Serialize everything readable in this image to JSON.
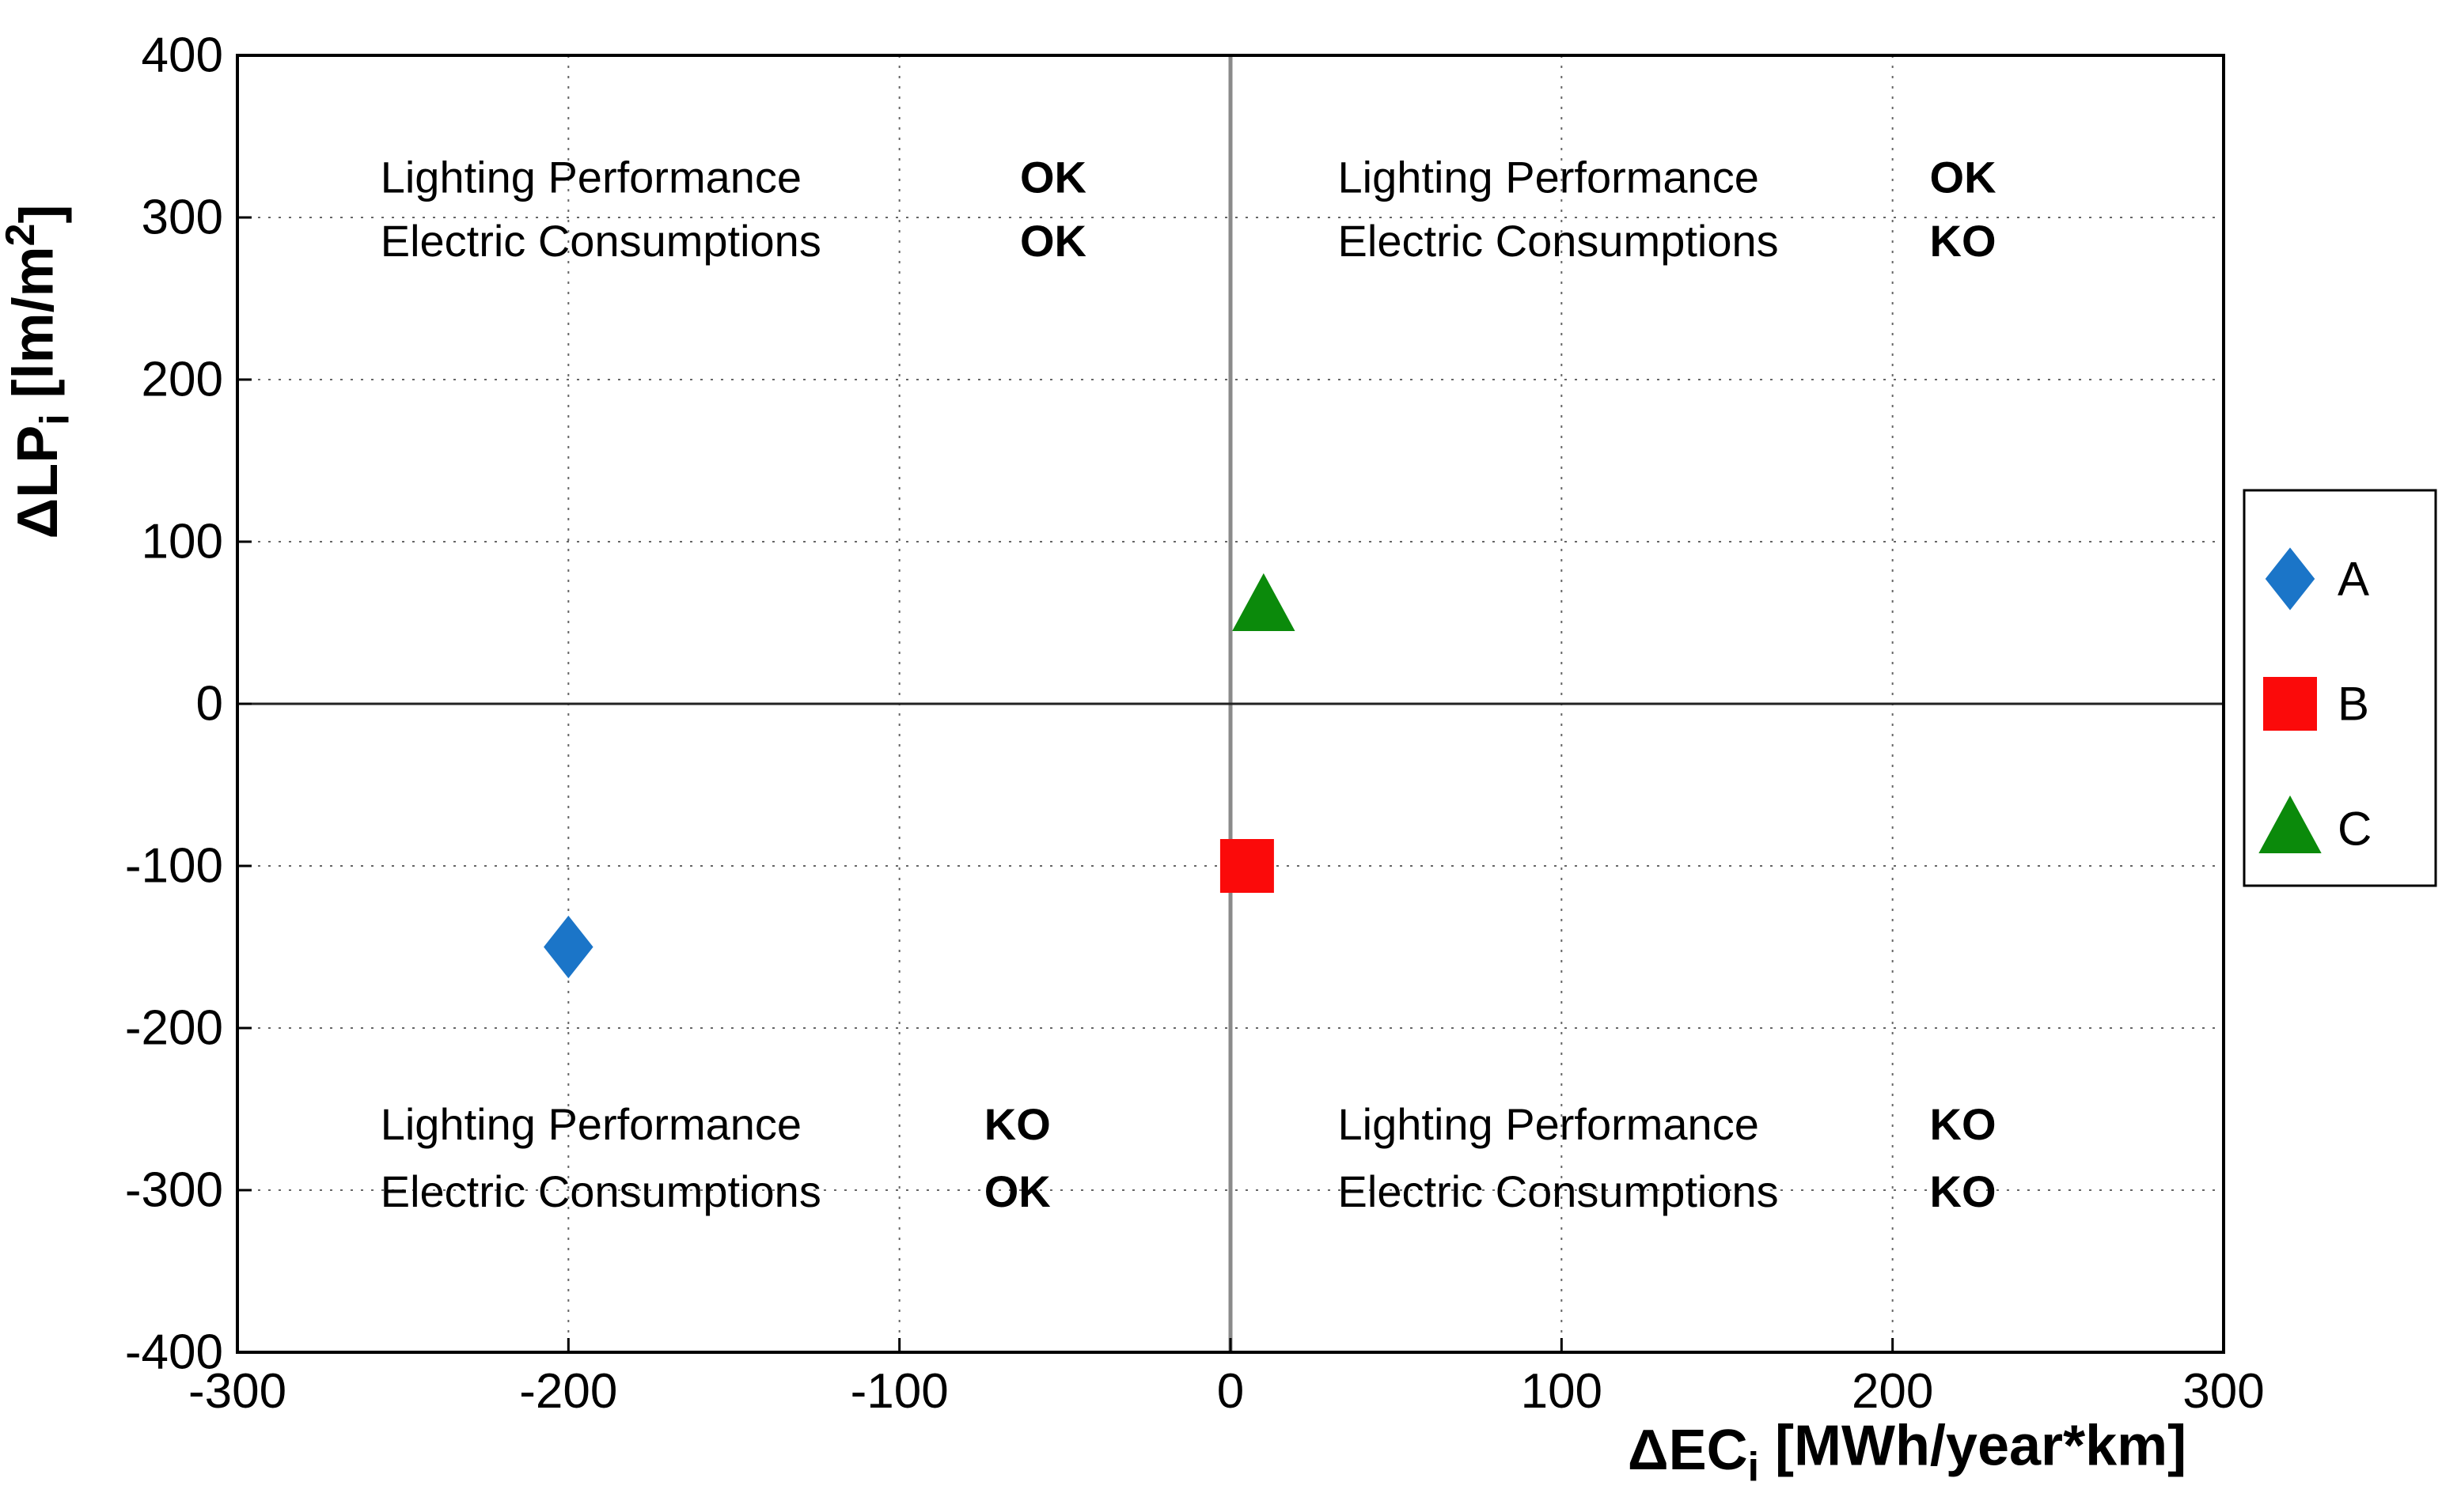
{
  "chart_data": {
    "type": "scatter",
    "title": "",
    "xlabel": "ΔEC_i [MWh/year*km]",
    "ylabel": "ΔLP_i [lm/m^2]",
    "xlabel_parts": [
      {
        "t": "ΔEC"
      },
      {
        "t": "i",
        "sub": true
      },
      {
        "t": " [MWh/year*km]"
      }
    ],
    "ylabel_parts": [
      {
        "t": "ΔLP"
      },
      {
        "t": "i",
        "sub": true
      },
      {
        "t": " [lm/m"
      },
      {
        "t": "2",
        "sup": true
      },
      {
        "t": "]"
      }
    ],
    "xlim": [
      -300,
      300
    ],
    "ylim": [
      -400,
      400
    ],
    "x_ticks": [
      -300,
      -200,
      -100,
      0,
      100,
      200,
      300
    ],
    "y_ticks": [
      -400,
      -300,
      -200,
      -100,
      0,
      100,
      200,
      300,
      400
    ],
    "grid": true,
    "zero_lines": {
      "horizontal": true,
      "vertical": true
    },
    "series": [
      {
        "name": "A",
        "marker": "diamond",
        "color": "#1b75c8",
        "points": [
          [
            -200,
            -150
          ]
        ]
      },
      {
        "name": "B",
        "marker": "square",
        "color": "#fb0a0a",
        "points": [
          [
            5,
            -100
          ]
        ]
      },
      {
        "name": "C",
        "marker": "triangle",
        "color": "#0b8a0b",
        "points": [
          [
            10,
            60
          ]
        ]
      }
    ],
    "legend": {
      "position": "right-outside",
      "entries": [
        "A",
        "B",
        "C"
      ]
    },
    "annotations": [
      {
        "quadrant": "top-left",
        "rows": [
          [
            "Lighting Performance",
            "OK"
          ],
          [
            "Electric Consumptions",
            "OK"
          ]
        ]
      },
      {
        "quadrant": "top-right",
        "rows": [
          [
            "Lighting Performance",
            "OK"
          ],
          [
            "Electric Consumptions",
            "KO"
          ]
        ]
      },
      {
        "quadrant": "bottom-left",
        "rows": [
          [
            "Lighting Performance",
            "KO"
          ],
          [
            "Electric Consumptions",
            "OK"
          ]
        ]
      },
      {
        "quadrant": "bottom-right",
        "rows": [
          [
            "Lighting Performance",
            "KO"
          ],
          [
            "Electric Consumptions",
            "KO"
          ]
        ]
      }
    ],
    "colors": {
      "grid": "#666666",
      "zero_line_h": "#222222",
      "zero_line_v": "#8a8a8a",
      "plot_border": "#000000",
      "background": "#ffffff"
    }
  }
}
